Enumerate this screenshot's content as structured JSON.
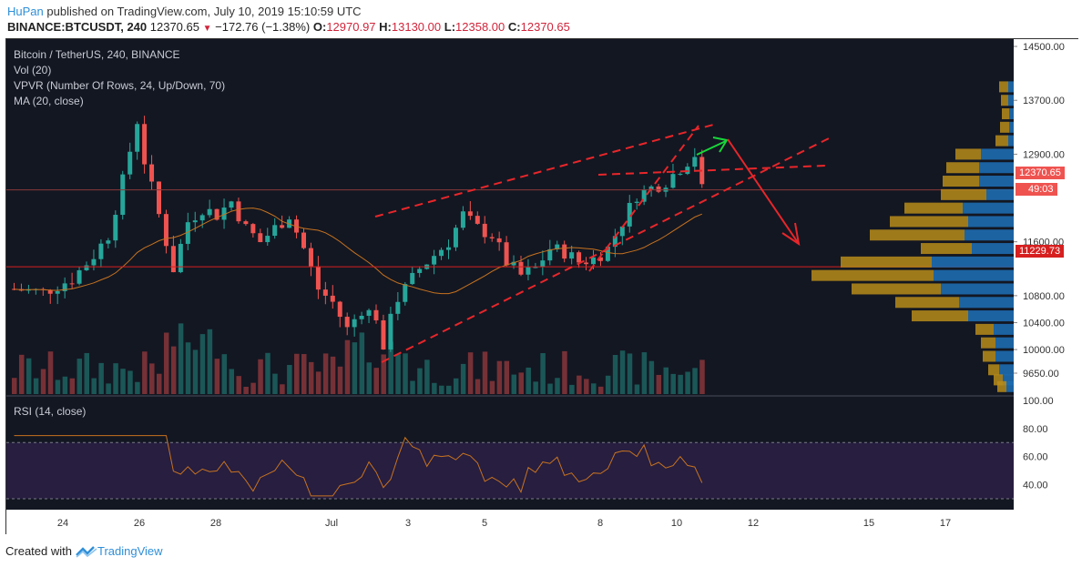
{
  "header": {
    "author": "HuPan",
    "published_text": "published on TradingView.com, July 10, 2019 15:10:59 UTC",
    "symbol": "BINANCE:BTCUSDT, 240",
    "last": "12370.65",
    "change": "−172.76 (−1.38%)",
    "o_label": "O:",
    "o_value": "12970.97",
    "h_label": "H:",
    "h_value": "13130.00",
    "l_label": "L:",
    "l_value": "12358.00",
    "c_label": "C:",
    "c_value": "12370.65"
  },
  "legend": {
    "title": "Bitcoin / TetherUS, 240, BINANCE",
    "vol": "Vol (20)",
    "vpvr": "VPVR (Number Of Rows, 24, Up/Down, 70)",
    "ma": "MA (20, close)",
    "rsi": "RSI (14, close)"
  },
  "price_tags": {
    "last_price": "12370.65",
    "countdown": "49:03",
    "level": "11229.73",
    "cut": "12"
  },
  "footer": {
    "created_with": "Created with",
    "brand": "TradingView"
  },
  "colors": {
    "up": "#26a69a",
    "down": "#ef5350",
    "bg": "#131722",
    "trend": "#e8262a",
    "arrow_up": "#19d63a",
    "ma": "#c7721f",
    "level_line": "#d71f1f",
    "vp_up": "#1e6bb0",
    "vp_down": "#b88c1a"
  },
  "chart_data": {
    "type": "candlestick",
    "title": "Bitcoin / TetherUS, 240, BINANCE",
    "price_axis": [
      "14500.00",
      "13700.00",
      "12900.00",
      "11600.00",
      "10800.00",
      "10400.00",
      "10000.00",
      "9650.00"
    ],
    "rsi_axis": [
      "100.00",
      "80.00",
      "60.00",
      "40.00"
    ],
    "x_labels": [
      "24",
      "26",
      "28",
      "Jul",
      "3",
      "5",
      "8",
      "10",
      "12",
      "15",
      "17"
    ],
    "ohlc": {
      "open": 12970.97,
      "high": 13130.0,
      "low": 12358.0,
      "close": 12370.65,
      "change": -172.76,
      "change_pct": -1.38
    },
    "levels": [
      12370.65,
      11229.73
    ],
    "rsi_bands": [
      70,
      30
    ]
  }
}
